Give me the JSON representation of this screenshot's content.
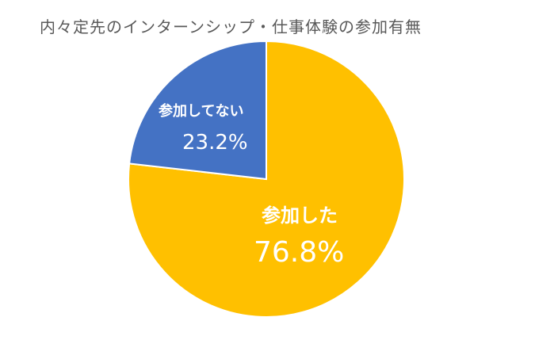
{
  "chart_data": {
    "type": "pie",
    "title": "内々定先のインターンシップ・仕事体験の参加有無",
    "slices": [
      {
        "label": "参加した",
        "value": 76.8,
        "display": "76.8%",
        "color": "#FFC000"
      },
      {
        "label": "参加してない",
        "value": 23.2,
        "display": "23.2%",
        "color": "#4472C4"
      }
    ],
    "start_angle_deg": 0,
    "direction": "clockwise",
    "legend": "none"
  }
}
